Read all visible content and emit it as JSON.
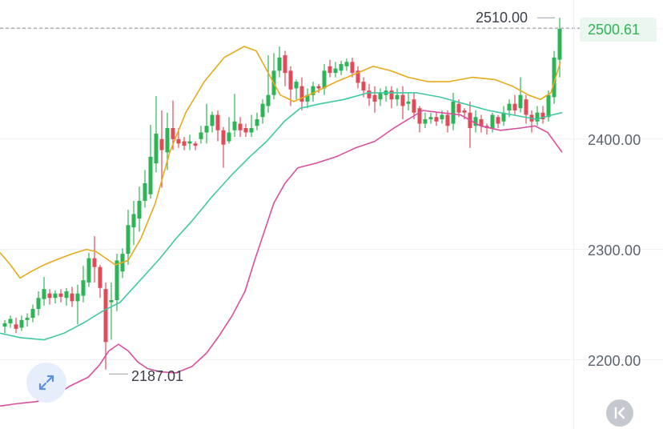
{
  "chart_data": {
    "type": "candlestick",
    "y_axis": {
      "ticks": [
        "2500.00",
        "2400.00",
        "2300.00",
        "2200.00"
      ],
      "tick_values": [
        2500,
        2400,
        2300,
        2200
      ],
      "range": [
        2152,
        2530
      ]
    },
    "current_price": "2500.61",
    "high_marker": {
      "label": "2510.00",
      "value": 2510
    },
    "low_marker": {
      "label": "2187.01",
      "value": 2187.01
    },
    "colors": {
      "up": "#2eb356",
      "down": "#e04b5a",
      "boll_upper": "#e8a91a",
      "boll_mid": "#3ec9a2",
      "boll_lower": "#d84f9c",
      "grid": "#eef0f3",
      "dash_line": "#8a8f99"
    },
    "candles": [
      [
        2230,
        2233,
        2224,
        2236
      ],
      [
        2233,
        2237,
        2229,
        2240
      ],
      [
        2232,
        2228,
        2224,
        2238
      ],
      [
        2229,
        2236,
        2226,
        2240
      ],
      [
        2236,
        2238,
        2230,
        2242
      ],
      [
        2238,
        2246,
        2234,
        2250
      ],
      [
        2246,
        2256,
        2240,
        2262
      ],
      [
        2255,
        2264,
        2249,
        2275
      ],
      [
        2260,
        2256,
        2250,
        2264
      ],
      [
        2256,
        2260,
        2251,
        2263
      ],
      [
        2260,
        2257,
        2252,
        2264
      ],
      [
        2256,
        2262,
        2249,
        2265
      ],
      [
        2260,
        2253,
        2248,
        2266
      ],
      [
        2253,
        2260,
        2232,
        2268
      ],
      [
        2258,
        2272,
        2252,
        2285
      ],
      [
        2270,
        2292,
        2266,
        2297
      ],
      [
        2292,
        2284,
        2270,
        2312
      ],
      [
        2284,
        2265,
        2256,
        2286
      ],
      [
        2264,
        2216,
        2191,
        2270
      ],
      [
        2252,
        2254,
        2218,
        2270
      ],
      [
        2254,
        2290,
        2244,
        2296
      ],
      [
        2280,
        2296,
        2274,
        2301
      ],
      [
        2296,
        2322,
        2286,
        2336
      ],
      [
        2320,
        2332,
        2304,
        2344
      ],
      [
        2328,
        2344,
        2316,
        2357
      ],
      [
        2344,
        2360,
        2338,
        2372
      ],
      [
        2350,
        2384,
        2346,
        2413
      ],
      [
        2378,
        2405,
        2370,
        2439
      ],
      [
        2400,
        2390,
        2356,
        2426
      ],
      [
        2388,
        2410,
        2372,
        2424
      ],
      [
        2410,
        2400,
        2390,
        2435
      ],
      [
        2400,
        2396,
        2392,
        2410
      ],
      [
        2398,
        2394,
        2390,
        2402
      ],
      [
        2396,
        2398,
        2390,
        2404
      ],
      [
        2396,
        2394,
        2390,
        2398
      ],
      [
        2400,
        2406,
        2396,
        2412
      ],
      [
        2406,
        2412,
        2396,
        2432
      ],
      [
        2412,
        2422,
        2406,
        2425
      ],
      [
        2422,
        2408,
        2398,
        2426
      ],
      [
        2408,
        2395,
        2374,
        2411
      ],
      [
        2398,
        2406,
        2396,
        2420
      ],
      [
        2408,
        2416,
        2402,
        2441
      ],
      [
        2414,
        2408,
        2402,
        2420
      ],
      [
        2410,
        2406,
        2402,
        2414
      ],
      [
        2406,
        2410,
        2402,
        2422
      ],
      [
        2412,
        2418,
        2408,
        2424
      ],
      [
        2420,
        2432,
        2414,
        2436
      ],
      [
        2430,
        2440,
        2424,
        2476
      ],
      [
        2440,
        2462,
        2436,
        2478
      ],
      [
        2462,
        2474,
        2456,
        2484
      ],
      [
        2476,
        2460,
        2448,
        2480
      ],
      [
        2462,
        2445,
        2430,
        2466
      ],
      [
        2446,
        2452,
        2436,
        2454
      ],
      [
        2448,
        2434,
        2426,
        2456
      ],
      [
        2434,
        2440,
        2428,
        2446
      ],
      [
        2440,
        2448,
        2434,
        2452
      ],
      [
        2448,
        2446,
        2442,
        2450
      ],
      [
        2446,
        2462,
        2440,
        2468
      ],
      [
        2466,
        2460,
        2456,
        2472
      ],
      [
        2460,
        2464,
        2456,
        2470
      ],
      [
        2462,
        2468,
        2458,
        2471
      ],
      [
        2466,
        2470,
        2462,
        2473
      ],
      [
        2470,
        2460,
        2456,
        2474
      ],
      [
        2462,
        2451,
        2446,
        2466
      ],
      [
        2452,
        2444,
        2438,
        2456
      ],
      [
        2444,
        2437,
        2430,
        2450
      ],
      [
        2440,
        2434,
        2424,
        2448
      ],
      [
        2436,
        2442,
        2430,
        2446
      ],
      [
        2440,
        2444,
        2434,
        2448
      ],
      [
        2444,
        2436,
        2428,
        2448
      ],
      [
        2436,
        2440,
        2430,
        2446
      ],
      [
        2440,
        2430,
        2418,
        2448
      ],
      [
        2432,
        2434,
        2426,
        2442
      ],
      [
        2436,
        2424,
        2418,
        2442
      ],
      [
        2428,
        2414,
        2406,
        2430
      ],
      [
        2414,
        2418,
        2410,
        2424
      ],
      [
        2418,
        2420,
        2414,
        2424
      ],
      [
        2420,
        2416,
        2412,
        2424
      ],
      [
        2418,
        2422,
        2414,
        2426
      ],
      [
        2422,
        2412,
        2406,
        2426
      ],
      [
        2414,
        2434,
        2408,
        2442
      ],
      [
        2432,
        2424,
        2420,
        2436
      ],
      [
        2426,
        2424,
        2418,
        2428
      ],
      [
        2424,
        2410,
        2392,
        2434
      ],
      [
        2412,
        2420,
        2406,
        2426
      ],
      [
        2418,
        2412,
        2406,
        2422
      ],
      [
        2412,
        2410,
        2404,
        2414
      ],
      [
        2410,
        2422,
        2406,
        2424
      ],
      [
        2420,
        2414,
        2410,
        2422
      ],
      [
        2416,
        2424,
        2412,
        2430
      ],
      [
        2426,
        2432,
        2420,
        2436
      ],
      [
        2432,
        2426,
        2422,
        2440
      ],
      [
        2428,
        2440,
        2424,
        2456
      ],
      [
        2436,
        2422,
        2414,
        2440
      ],
      [
        2422,
        2416,
        2406,
        2426
      ],
      [
        2416,
        2424,
        2412,
        2430
      ],
      [
        2424,
        2418,
        2414,
        2430
      ],
      [
        2420,
        2440,
        2416,
        2444
      ],
      [
        2438,
        2474,
        2432,
        2480
      ],
      [
        2472,
        2500,
        2456,
        2510
      ]
    ],
    "boll_upper": [
      [
        0,
        2297
      ],
      [
        13,
        2286
      ],
      [
        25,
        2274
      ],
      [
        39,
        2280
      ],
      [
        55,
        2286
      ],
      [
        72,
        2291
      ],
      [
        90,
        2296
      ],
      [
        108,
        2300
      ],
      [
        120,
        2298
      ],
      [
        132,
        2292
      ],
      [
        144,
        2286
      ],
      [
        160,
        2290
      ],
      [
        176,
        2310
      ],
      [
        194,
        2342
      ],
      [
        212,
        2388
      ],
      [
        232,
        2424
      ],
      [
        255,
        2452
      ],
      [
        280,
        2474
      ],
      [
        305,
        2484
      ],
      [
        320,
        2480
      ],
      [
        335,
        2460
      ],
      [
        350,
        2440
      ],
      [
        367,
        2434
      ],
      [
        392,
        2442
      ],
      [
        420,
        2452
      ],
      [
        440,
        2458
      ],
      [
        466,
        2466
      ],
      [
        488,
        2462
      ],
      [
        510,
        2456
      ],
      [
        535,
        2452
      ],
      [
        560,
        2452
      ],
      [
        590,
        2456
      ],
      [
        618,
        2454
      ],
      [
        640,
        2448
      ],
      [
        660,
        2440
      ],
      [
        675,
        2436
      ],
      [
        688,
        2442
      ],
      [
        700,
        2470
      ]
    ],
    "boll_mid": [
      [
        0,
        2224
      ],
      [
        25,
        2220
      ],
      [
        55,
        2218
      ],
      [
        80,
        2224
      ],
      [
        106,
        2234
      ],
      [
        128,
        2244
      ],
      [
        150,
        2252
      ],
      [
        175,
        2272
      ],
      [
        200,
        2292
      ],
      [
        220,
        2310
      ],
      [
        240,
        2326
      ],
      [
        265,
        2348
      ],
      [
        290,
        2368
      ],
      [
        312,
        2384
      ],
      [
        333,
        2398
      ],
      [
        355,
        2416
      ],
      [
        375,
        2428
      ],
      [
        400,
        2432
      ],
      [
        430,
        2436
      ],
      [
        460,
        2442
      ],
      [
        490,
        2442
      ],
      [
        520,
        2442
      ],
      [
        550,
        2438
      ],
      [
        580,
        2432
      ],
      [
        610,
        2426
      ],
      [
        640,
        2422
      ],
      [
        670,
        2418
      ],
      [
        690,
        2422
      ],
      [
        702,
        2424
      ]
    ],
    "boll_lower": [
      [
        0,
        2158
      ],
      [
        20,
        2160
      ],
      [
        45,
        2162
      ],
      [
        66,
        2166
      ],
      [
        87,
        2176
      ],
      [
        110,
        2184
      ],
      [
        124,
        2195
      ],
      [
        136,
        2208
      ],
      [
        148,
        2214
      ],
      [
        160,
        2208
      ],
      [
        172,
        2198
      ],
      [
        184,
        2192
      ],
      [
        200,
        2189
      ],
      [
        220,
        2188
      ],
      [
        240,
        2194
      ],
      [
        258,
        2206
      ],
      [
        274,
        2222
      ],
      [
        290,
        2240
      ],
      [
        306,
        2262
      ],
      [
        318,
        2290
      ],
      [
        330,
        2316
      ],
      [
        342,
        2342
      ],
      [
        356,
        2360
      ],
      [
        372,
        2374
      ],
      [
        394,
        2378
      ],
      [
        420,
        2384
      ],
      [
        444,
        2392
      ],
      [
        468,
        2398
      ],
      [
        492,
        2410
      ],
      [
        510,
        2418
      ],
      [
        528,
        2426
      ],
      [
        550,
        2424
      ],
      [
        575,
        2422
      ],
      [
        600,
        2412
      ],
      [
        625,
        2408
      ],
      [
        650,
        2410
      ],
      [
        668,
        2412
      ],
      [
        684,
        2406
      ],
      [
        702,
        2388
      ]
    ]
  },
  "controls": {
    "expand_icon": "expand-arrows-icon",
    "skip_icon": "skip-back-icon"
  }
}
